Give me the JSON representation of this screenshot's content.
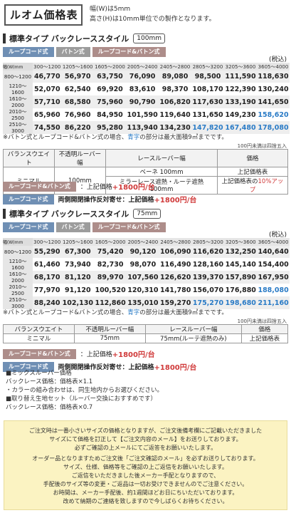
{
  "header": {
    "title": "ルオム価格表",
    "note_width": "幅(W)は5mm",
    "note_height": "高さ(H)は10mm単位での製作となります。"
  },
  "tags": {
    "loop": "ループコード式",
    "baton": "バトン式",
    "loop_baton": "ループコード&バトン式"
  },
  "tax_label": "(税込)",
  "vertical_labels": {
    "loop": "ループコード式",
    "baton": "バトン式",
    "loop_baton": "ループコード&バトン式"
  },
  "section1": {
    "title": "標準タイプ バックレーススタイル",
    "mm": "100mm",
    "corner_w": "幅(W)mm",
    "corner_h": "高さ(H)mm",
    "widths": [
      "300〜1200",
      "1205〜1600",
      "1605〜2000",
      "2005〜2400",
      "2405〜2800",
      "2805〜3200",
      "3205〜3600",
      "3605〜4000"
    ],
    "rows": [
      {
        "h": "800〜1200",
        "p": [
          "46,770",
          "56,970",
          "63,750",
          "76,090",
          "89,080",
          "98,500",
          "111,590",
          "118,630"
        ]
      },
      {
        "h": "1210〜1600",
        "p": [
          "52,070",
          "62,540",
          "69,920",
          "83,610",
          "98,370",
          "108,170",
          "122,390",
          "130,240"
        ]
      },
      {
        "h": "1610〜2000",
        "p": [
          "57,710",
          "68,580",
          "75,960",
          "90,790",
          "106,820",
          "117,630",
          "133,190",
          "141,650"
        ]
      },
      {
        "h": "2010〜2500",
        "p": [
          "65,960",
          "76,960",
          "84,950",
          "101,590",
          "119,640",
          "131,650",
          "149,230",
          "158,620"
        ]
      },
      {
        "h": "2510〜3000",
        "p": [
          "74,550",
          "86,220",
          "95,280",
          "113,940",
          "134,230",
          "147,820",
          "167,480",
          "178,080"
        ]
      }
    ],
    "note_a": "※バトン式とループコード&バトン式の場合、",
    "note_b": "青字",
    "note_c": "の部分は最大面積9㎡までです。",
    "note_round": "100円未満は四捨五入",
    "opt_headers": [
      "バランスウエイト",
      "不透明ルーバー幅",
      "レースルーバー幅",
      "価格"
    ],
    "opt_row1": {
      "balance": "ミニマル",
      "opaque": "100mm",
      "lace1": "ベーネ 100mm",
      "price1": "上記価格表",
      "lace2": "ミラーレース遮熱・ルーテ遮熱 100mm",
      "price2a": "上記価格表の",
      "price2b": "10%アップ"
    },
    "add_label": "：上記価格",
    "add_price": "+1800円/台",
    "reverse_label": "両側開閉操作反対寄せ：上記価格",
    "reverse_price": "+1800円/台"
  },
  "section2": {
    "title": "標準タイプ バックレーススタイル",
    "mm": "75mm",
    "corner_w": "幅(W)mm",
    "corner_h": "高さ(H)mm",
    "widths": [
      "300〜1200",
      "1205〜1600",
      "1605〜2000",
      "2005〜2400",
      "2405〜2800",
      "2805〜3200",
      "3205〜3600",
      "3605〜4000"
    ],
    "rows": [
      {
        "h": "800〜1200",
        "p": [
          "55,290",
          "67,300",
          "75,420",
          "90,120",
          "106,090",
          "116,620",
          "132,250",
          "140,640"
        ]
      },
      {
        "h": "1210〜1600",
        "p": [
          "61,460",
          "73,940",
          "82,730",
          "98,070",
          "116,490",
          "128,160",
          "145,140",
          "154,400"
        ]
      },
      {
        "h": "1610〜2000",
        "p": [
          "68,170",
          "81,120",
          "89,970",
          "107,560",
          "126,620",
          "139,370",
          "157,890",
          "167,950"
        ]
      },
      {
        "h": "2010〜2500",
        "p": [
          "77,970",
          "91,120",
          "100,520",
          "120,310",
          "141,780",
          "156,070",
          "176,880",
          "188,080"
        ]
      },
      {
        "h": "2510〜3000",
        "p": [
          "88,240",
          "102,130",
          "112,860",
          "135,010",
          "159,270",
          "175,270",
          "198,680",
          "211,160"
        ]
      }
    ],
    "note_a": "※バトン式とループコード&バトン式の場合、",
    "note_b": "青字",
    "note_c": "の部分は最大面積9㎡までです。",
    "note_round": "100円未満は四捨五入",
    "opt_headers": [
      "バランスウエイト",
      "不透明ルーバー幅",
      "レースルーバー幅",
      "価格"
    ],
    "opt_row1": {
      "balance": "ミニマル",
      "opaque": "75mm",
      "lace": "75mm(ルーテ遮熱のみ)",
      "price": "上記価格表"
    },
    "add_label": "：上記価格",
    "add_price": "+1800円/台",
    "reverse_label": "両側開閉操作反対寄せ：上記価格",
    "reverse_price": "+1800円/台"
  },
  "mix_notes": [
    "■ミックスルーバー価格",
    "バックレース価格：価格表×1.1",
    "・カラーの組み合わせは、同生地内からお選びください。",
    "■取り替え生地セット（ルーバー交換におすすめです）",
    "ルーバーのみ/セット价格",
    "バックレース価格：価格表×0.7"
  ],
  "notice": [
    "ご注文時は一番小さいサイズの価格となりますが、ご注文後備考欄にご記載いただきました",
    "サイズにて価格を訂正して【ご注文内容のメール】をお送りしております。",
    "必ずご確認の上メールにてご返答をお願いいたします。",
    "オーダー品となりますためご注文後「ご注文確認のメール」を必ずお送りしております。",
    "サイズ、仕様、価格等をご確認の上ご返信をお願いいたします。",
    "ご返信をいただきました後メーカー手配となりますので、",
    "手配後のサイズ等の変更・ご返品は一切お受けできませんのでご注意ください。",
    "お時間は、メーカー手配後、約1週間ほどお日にちいただいております。",
    "改めて納期のご連絡を致しますので今しばらくお待ちください。"
  ],
  "colors": {
    "blue_tag": "#6f8fb4",
    "gray_tag": "#9c9c9c",
    "brown_tag": "#ad8d8a",
    "highlight": "#2a7bc6",
    "red": "#d03a3a",
    "notice_bg": "#fbf3c2"
  }
}
